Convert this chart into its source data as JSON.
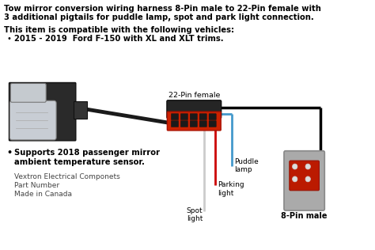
{
  "title_line1": "Tow mirror conversion wiring harness 8-Pin male to 22-Pin female with",
  "title_line2": "3 additional pigtails for puddle lamp, spot and park light connection.",
  "compat_header": "This item is compatible with the following vehicles:",
  "compat_bullet": "2015 - 2019  Ford F-150 with XL and XLT trims.",
  "bullet2_line1": "Supports 2018 passenger mirror",
  "bullet2_line2": "ambient temperature sensor.",
  "footer_line1": "Vextron Electrical Componets",
  "footer_line2": "Part Number",
  "footer_line3": "Made in Canada",
  "label_22pin": "22-Pin female",
  "label_8pin": "8-Pin male",
  "label_puddle": "Puddle\nlamp",
  "label_parking": "Parking\nlight",
  "label_spot": "Spot\nlight",
  "bg_color": "#ffffff",
  "text_color": "#000000",
  "wire_black": "#000000",
  "wire_red": "#cc0000",
  "wire_blue": "#4499cc",
  "wire_white": "#cccccc",
  "conn22_black": "#222222",
  "conn22_red": "#cc2200",
  "conn8_gray": "#aaaaaa",
  "conn8_red": "#cc2200"
}
